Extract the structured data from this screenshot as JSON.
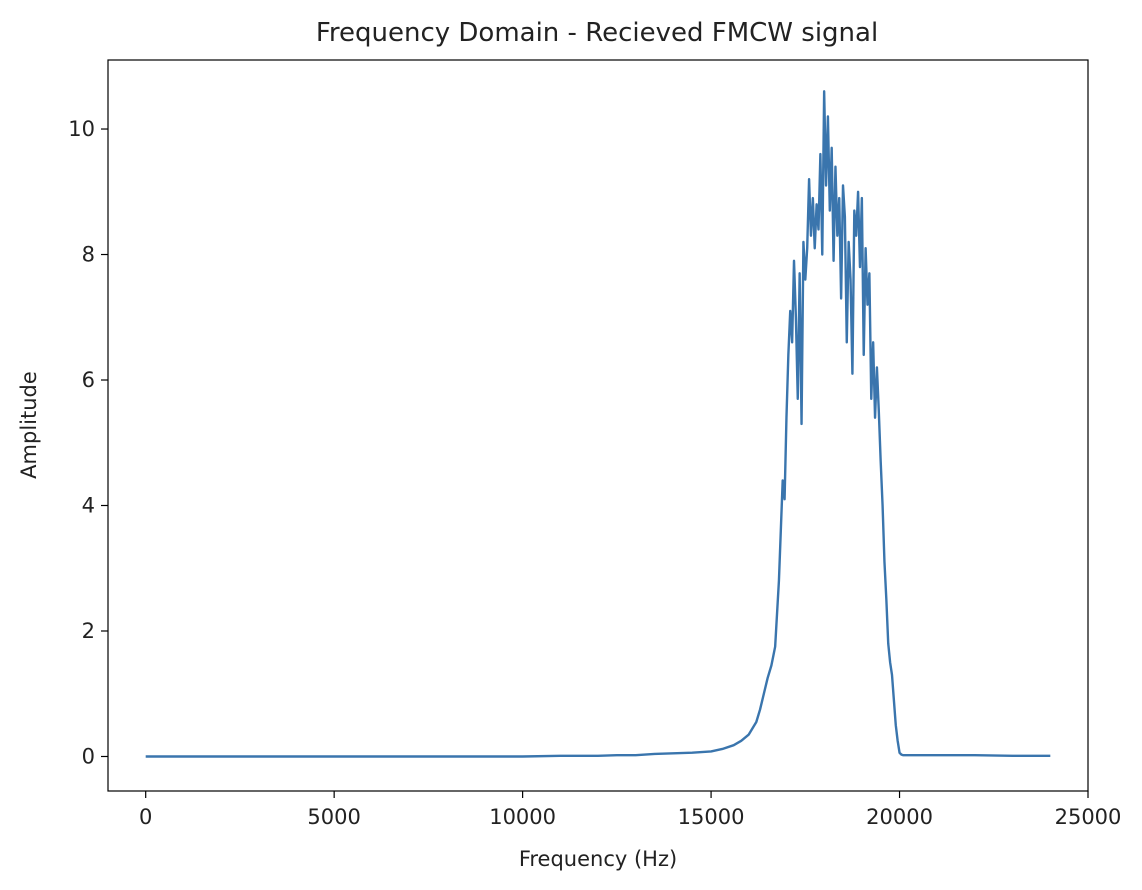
{
  "chart_data": {
    "type": "line",
    "title": "Frequency Domain - Recieved FMCW signal",
    "xlabel": "Frequency (Hz)",
    "ylabel": "Amplitude",
    "xlim": [
      -1000,
      25000
    ],
    "ylim": [
      -0.55,
      11.1
    ],
    "xticks": [
      0,
      5000,
      10000,
      15000,
      20000,
      25000
    ],
    "xtick_labels": [
      "0",
      "5000",
      "10000",
      "15000",
      "20000",
      "25000"
    ],
    "yticks": [
      0,
      2,
      4,
      6,
      8,
      10
    ],
    "ytick_labels": [
      "0",
      "2",
      "4",
      "6",
      "8",
      "10"
    ],
    "grid": false,
    "line_color": "#3a75ad",
    "series": [
      {
        "x": [
          0,
          2000,
          4000,
          6000,
          8000,
          10000,
          11000,
          12000,
          12500,
          13000,
          13500,
          14000,
          14500,
          15000,
          15300,
          15600,
          15800,
          16000,
          16100,
          16200,
          16300,
          16400,
          16500,
          16600,
          16650,
          16700,
          16800,
          16850,
          16900,
          16950,
          17000,
          17050,
          17100,
          17150,
          17200,
          17250,
          17300,
          17350,
          17400,
          17450,
          17500,
          17550,
          17600,
          17650,
          17700,
          17750,
          17800,
          17850,
          17900,
          17950,
          18000,
          18050,
          18100,
          18150,
          18200,
          18250,
          18300,
          18350,
          18400,
          18450,
          18500,
          18550,
          18600,
          18650,
          18700,
          18750,
          18800,
          18850,
          18900,
          18950,
          19000,
          19050,
          19100,
          19150,
          19200,
          19250,
          19300,
          19350,
          19400,
          19450,
          19500,
          19550,
          19600,
          19650,
          19700,
          19750,
          19800,
          19850,
          19900,
          19950,
          20000,
          20050,
          20100,
          20200,
          20500,
          21000,
          22000,
          23000,
          24000
        ],
        "y": [
          0.0,
          0.0,
          0.0,
          0.0,
          0.0,
          0.0,
          0.01,
          0.01,
          0.02,
          0.02,
          0.04,
          0.05,
          0.06,
          0.08,
          0.12,
          0.18,
          0.25,
          0.35,
          0.45,
          0.55,
          0.75,
          1.0,
          1.25,
          1.45,
          1.6,
          1.75,
          2.8,
          3.6,
          4.4,
          4.1,
          5.4,
          6.4,
          7.1,
          6.6,
          7.9,
          7.0,
          5.7,
          7.7,
          5.3,
          8.2,
          7.6,
          8.1,
          9.2,
          8.3,
          8.9,
          8.1,
          8.8,
          8.4,
          9.6,
          8.0,
          10.6,
          9.1,
          10.2,
          8.7,
          9.7,
          7.9,
          9.4,
          8.3,
          8.9,
          7.3,
          9.1,
          8.6,
          6.6,
          8.2,
          7.6,
          6.1,
          8.7,
          8.3,
          9.0,
          7.8,
          8.9,
          6.4,
          8.1,
          7.2,
          7.7,
          5.7,
          6.6,
          5.4,
          6.2,
          5.5,
          4.7,
          4.0,
          3.1,
          2.5,
          1.8,
          1.5,
          1.3,
          0.9,
          0.5,
          0.25,
          0.06,
          0.03,
          0.02,
          0.02,
          0.02,
          0.02,
          0.02,
          0.01,
          0.01
        ]
      }
    ]
  }
}
